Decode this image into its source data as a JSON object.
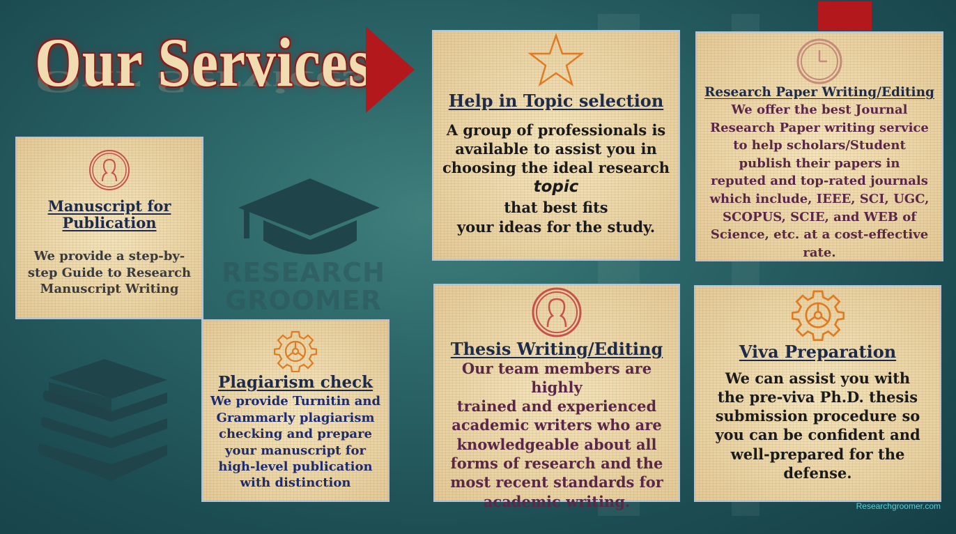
{
  "page": {
    "title": "Our Services",
    "watermark_line1": "RESEARCH",
    "watermark_line2": "GROOMER",
    "footer_url": "Researchgroomer.com"
  },
  "colors": {
    "accent_red": "#b3191c",
    "card_bg": "#ecd7a7",
    "heading_navy": "#1d2a4a",
    "icon_red": "#c9504a",
    "icon_orange": "#e07b22",
    "footer_cyan": "#5fd0d8"
  },
  "cards": {
    "manuscript": {
      "icon": "user-circle-icon",
      "title_line1": "Manuscript for",
      "title_line2": "Publication",
      "body_line1": "We provide a step-by-",
      "body_line2": "step Guide to Research",
      "body_line3": "Manuscript Writing"
    },
    "plagiarism": {
      "icon": "gear-icon",
      "title": "Plagiarism check",
      "body_line1": "We provide Turnitin and",
      "body_line2": "Grammarly plagiarism",
      "body_line3": "checking and prepare",
      "body_line4": "your manuscript for",
      "body_line5": "high-level publication",
      "body_line6": "with distinction"
    },
    "topic": {
      "icon": "star-icon",
      "title": "Help in Topic selection",
      "body_line1": "A group of professionals is",
      "body_line2": "available to assist you in",
      "body_line3": "choosing the ideal research",
      "body_line4": "topic",
      "body_line5": "that best fits",
      "body_line6": "your ideas for the study."
    },
    "research_paper": {
      "icon": "clock-icon",
      "title": "Research Paper Writing/Editing",
      "body_line1": "We offer the best Journal",
      "body_line2": "Research Paper writing service",
      "body_line3": "to help scholars/Student",
      "body_line4": "publish their papers in",
      "body_line5": "reputed and top-rated journals",
      "body_line6": "which include, IEEE, SCI, UGC,",
      "body_line7": "SCOPUS, SCIE, and WEB of",
      "body_line8": "Science, etc. at a cost-effective",
      "body_line9": "rate."
    },
    "thesis": {
      "icon": "user-circle-icon",
      "title": "Thesis Writing/Editing",
      "body_line1": "Our team members are highly",
      "body_line2": "trained and experienced",
      "body_line3": "academic writers who are",
      "body_line4": "knowledgeable about all",
      "body_line5": "forms of research and the",
      "body_line6": "most recent standards for",
      "body_line7": "academic writing."
    },
    "viva": {
      "icon": "gear-icon",
      "title": "Viva Preparation",
      "body_line1": "We can assist you with",
      "body_line2": "the pre-viva Ph.D. thesis",
      "body_line3": "submission procedure so",
      "body_line4": "you can be confident and",
      "body_line5": "well-prepared for the",
      "body_line6": "defense."
    }
  }
}
